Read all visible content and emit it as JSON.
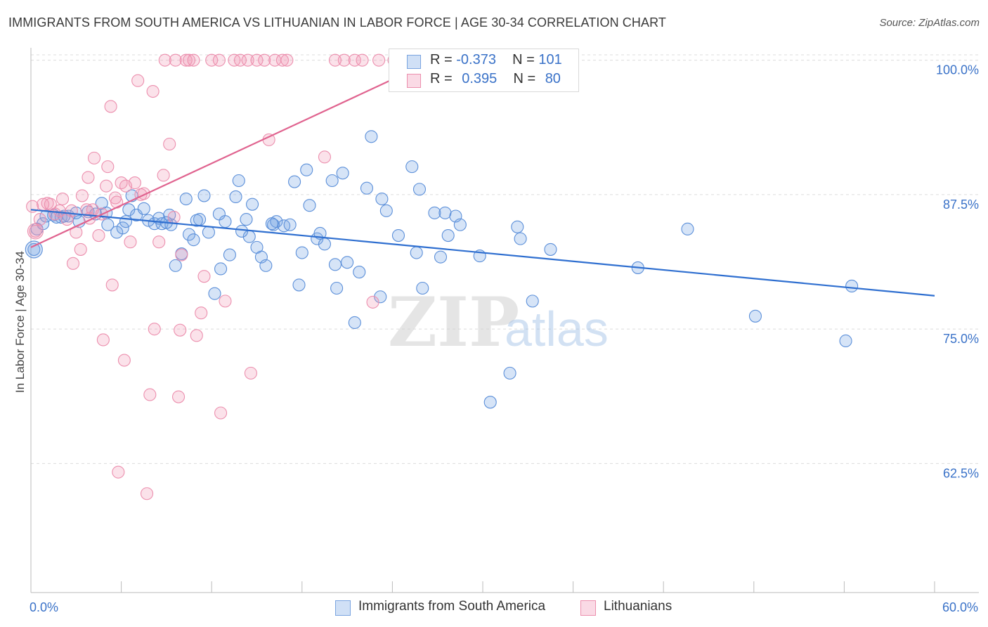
{
  "title": "IMMIGRANTS FROM SOUTH AMERICA VS LITHUANIAN IN LABOR FORCE | AGE 30-34 CORRELATION CHART",
  "source": "Source: ZipAtlas.com",
  "watermark": {
    "zip": "ZIP",
    "atlas": "atlas"
  },
  "legend": {
    "rows": [
      {
        "r_label": "R =",
        "r_value": "-0.373",
        "n_label": "N =",
        "n_value": "101"
      },
      {
        "r_label": "R =",
        "r_value": "0.395",
        "n_label": "N =",
        "n_value": "80"
      }
    ]
  },
  "bottom_legend": [
    "Immigrants from South America",
    "Lithuanians"
  ],
  "colors": {
    "blue": "#5b8fd9",
    "blue_fill": "rgba(120,165,230,0.30)",
    "blue_line": "#2f6fd0",
    "pink": "#ec8fae",
    "pink_fill": "rgba(240,150,180,0.28)",
    "pink_line": "#e0638f",
    "tick_text": "#3a72c8",
    "grid": "#dcdcdc"
  },
  "chart_data": {
    "type": "scatter",
    "title": "IMMIGRANTS FROM SOUTH AMERICA VS LITHUANIAN IN LABOR FORCE | AGE 30-34 CORRELATION CHART",
    "xlabel": "",
    "ylabel": "In Labor Force | Age 30-34",
    "xlim": [
      0,
      60
    ],
    "ylim": [
      50.5,
      100.5
    ],
    "x_tick_labels": [
      {
        "value": 0,
        "label": "0.0%"
      },
      {
        "value": 60,
        "label": "60.0%"
      }
    ],
    "y_ticks": [
      {
        "value": 100,
        "label": "100.0%"
      },
      {
        "value": 87.5,
        "label": "87.5%"
      },
      {
        "value": 75,
        "label": "75.0%"
      },
      {
        "value": 62.5,
        "label": "62.5%"
      }
    ],
    "grid": "horizontal dashed",
    "legend_position": "top-center",
    "series": [
      {
        "name": "Immigrants from South America",
        "R": -0.373,
        "N": 101,
        "trend": [
          [
            0,
            86.1
          ],
          [
            60,
            78.1
          ]
        ],
        "points": [
          [
            0.2,
            82.4
          ],
          [
            0.4,
            84.3
          ],
          [
            0.8,
            84.8
          ],
          [
            1.0,
            85.5
          ],
          [
            1.5,
            85.6
          ],
          [
            2.0,
            85.4
          ],
          [
            2.5,
            85.5
          ],
          [
            3.2,
            85.0
          ],
          [
            3.0,
            85.8
          ],
          [
            3.8,
            85.9
          ],
          [
            4.3,
            85.7
          ],
          [
            4.7,
            86.7
          ],
          [
            5.1,
            84.7
          ],
          [
            5.0,
            85.8
          ],
          [
            5.7,
            84.0
          ],
          [
            6.1,
            84.4
          ],
          [
            6.5,
            86.1
          ],
          [
            6.7,
            87.4
          ],
          [
            7.0,
            85.6
          ],
          [
            7.5,
            86.2
          ],
          [
            7.8,
            85.1
          ],
          [
            8.2,
            84.8
          ],
          [
            8.5,
            85.3
          ],
          [
            8.7,
            84.8
          ],
          [
            9.2,
            85.6
          ],
          [
            9.3,
            84.7
          ],
          [
            9.6,
            80.9
          ],
          [
            10.0,
            82.0
          ],
          [
            10.3,
            87.1
          ],
          [
            10.5,
            83.8
          ],
          [
            10.8,
            83.3
          ],
          [
            11.2,
            85.2
          ],
          [
            11.5,
            87.4
          ],
          [
            11.8,
            84.0
          ],
          [
            12.2,
            78.3
          ],
          [
            12.5,
            85.7
          ],
          [
            12.6,
            80.6
          ],
          [
            12.9,
            85.0
          ],
          [
            13.2,
            81.9
          ],
          [
            13.6,
            87.3
          ],
          [
            13.8,
            88.8
          ],
          [
            14.3,
            85.2
          ],
          [
            14.5,
            83.6
          ],
          [
            14.7,
            86.6
          ],
          [
            15.0,
            82.6
          ],
          [
            15.3,
            81.7
          ],
          [
            15.6,
            80.9
          ],
          [
            16.1,
            84.7
          ],
          [
            16.3,
            85.0
          ],
          [
            16.8,
            84.6
          ],
          [
            17.2,
            84.7
          ],
          [
            17.5,
            88.7
          ],
          [
            17.8,
            79.1
          ],
          [
            18.0,
            82.1
          ],
          [
            18.3,
            89.8
          ],
          [
            18.5,
            86.5
          ],
          [
            19.0,
            83.4
          ],
          [
            19.2,
            83.9
          ],
          [
            19.5,
            82.9
          ],
          [
            20.0,
            88.8
          ],
          [
            20.3,
            78.8
          ],
          [
            20.7,
            89.5
          ],
          [
            21.0,
            81.2
          ],
          [
            21.5,
            75.6
          ],
          [
            21.8,
            80.3
          ],
          [
            22.3,
            88.1
          ],
          [
            22.6,
            92.9
          ],
          [
            23.2,
            78.0
          ],
          [
            23.3,
            87.1
          ],
          [
            23.6,
            86.0
          ],
          [
            24.4,
            83.7
          ],
          [
            25.3,
            90.1
          ],
          [
            25.6,
            82.1
          ],
          [
            25.8,
            88.0
          ],
          [
            26.0,
            78.8
          ],
          [
            26.8,
            85.8
          ],
          [
            27.2,
            81.7
          ],
          [
            27.5,
            85.8
          ],
          [
            27.7,
            83.7
          ],
          [
            28.2,
            85.5
          ],
          [
            28.5,
            84.7
          ],
          [
            29.8,
            81.8
          ],
          [
            30.5,
            68.2
          ],
          [
            31.8,
            70.9
          ],
          [
            32.3,
            84.5
          ],
          [
            32.5,
            83.4
          ],
          [
            33.3,
            77.6
          ],
          [
            34.5,
            82.4
          ],
          [
            40.3,
            80.7
          ],
          [
            43.6,
            84.3
          ],
          [
            48.1,
            76.2
          ],
          [
            54.1,
            73.9
          ],
          [
            54.5,
            79.0
          ],
          [
            1.7,
            85.4
          ],
          [
            2.2,
            85.5
          ],
          [
            6.3,
            85.0
          ],
          [
            9.0,
            84.9
          ],
          [
            11.0,
            85.1
          ],
          [
            14.0,
            84.1
          ],
          [
            16.0,
            84.8
          ],
          [
            20.2,
            81.0
          ]
        ]
      },
      {
        "name": "Lithuanians",
        "R": 0.395,
        "N": 80,
        "trend": [
          [
            0,
            82.6
          ],
          [
            26.6,
            99.9
          ]
        ],
        "points": [
          [
            0.1,
            86.4
          ],
          [
            0.3,
            84.1
          ],
          [
            0.6,
            85.2
          ],
          [
            0.8,
            86.6
          ],
          [
            1.1,
            86.7
          ],
          [
            1.3,
            86.6
          ],
          [
            1.6,
            85.7
          ],
          [
            1.9,
            86.0
          ],
          [
            2.1,
            87.1
          ],
          [
            2.4,
            85.2
          ],
          [
            2.7,
            86.0
          ],
          [
            2.8,
            81.1
          ],
          [
            3.0,
            84.0
          ],
          [
            3.3,
            82.4
          ],
          [
            3.4,
            87.4
          ],
          [
            3.7,
            86.1
          ],
          [
            3.8,
            89.1
          ],
          [
            3.9,
            85.3
          ],
          [
            4.1,
            86.1
          ],
          [
            4.2,
            90.9
          ],
          [
            4.5,
            83.7
          ],
          [
            4.7,
            85.7
          ],
          [
            4.8,
            74.0
          ],
          [
            5.0,
            88.3
          ],
          [
            5.1,
            90.1
          ],
          [
            5.3,
            95.7
          ],
          [
            5.4,
            79.1
          ],
          [
            5.6,
            87.2
          ],
          [
            5.7,
            86.8
          ],
          [
            5.8,
            61.7
          ],
          [
            6.0,
            88.6
          ],
          [
            6.2,
            72.1
          ],
          [
            6.3,
            88.3
          ],
          [
            6.6,
            83.1
          ],
          [
            6.9,
            88.6
          ],
          [
            7.1,
            98.1
          ],
          [
            7.3,
            87.5
          ],
          [
            7.5,
            87.6
          ],
          [
            7.7,
            59.7
          ],
          [
            7.9,
            68.9
          ],
          [
            8.1,
            97.1
          ],
          [
            8.2,
            75.0
          ],
          [
            8.5,
            83.1
          ],
          [
            8.8,
            89.3
          ],
          [
            8.9,
            100.0
          ],
          [
            9.2,
            92.2
          ],
          [
            9.5,
            85.4
          ],
          [
            9.6,
            100.0
          ],
          [
            9.8,
            68.7
          ],
          [
            9.9,
            74.9
          ],
          [
            10.0,
            81.9
          ],
          [
            10.3,
            100.0
          ],
          [
            10.5,
            100.0
          ],
          [
            10.8,
            100.0
          ],
          [
            11.0,
            74.4
          ],
          [
            11.3,
            76.5
          ],
          [
            11.5,
            79.9
          ],
          [
            12.0,
            100.0
          ],
          [
            12.5,
            100.0
          ],
          [
            12.6,
            67.2
          ],
          [
            12.9,
            77.6
          ],
          [
            13.5,
            100.0
          ],
          [
            13.9,
            100.0
          ],
          [
            14.4,
            100.0
          ],
          [
            14.6,
            70.9
          ],
          [
            15.0,
            100.0
          ],
          [
            15.5,
            100.0
          ],
          [
            15.8,
            92.6
          ],
          [
            16.2,
            100.0
          ],
          [
            16.7,
            100.0
          ],
          [
            17.0,
            100.0
          ],
          [
            19.5,
            91.0
          ],
          [
            20.2,
            100.0
          ],
          [
            20.8,
            100.0
          ],
          [
            21.5,
            100.0
          ],
          [
            22.0,
            100.0
          ],
          [
            22.7,
            77.5
          ],
          [
            23.1,
            100.0
          ],
          [
            24.1,
            100.0
          ],
          [
            26.1,
            100.0
          ]
        ]
      }
    ]
  }
}
